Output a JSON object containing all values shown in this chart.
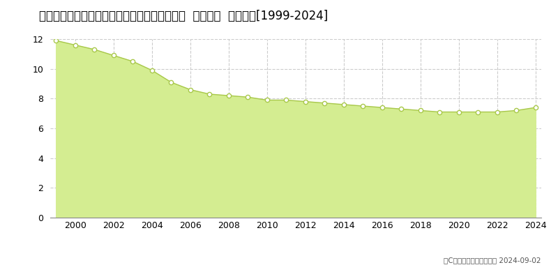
{
  "title": "三重県桑名市大字桑部字松ケ下１０４８番１外  地価公示  地価推移[1999-2024]",
  "years": [
    1999,
    2000,
    2001,
    2002,
    2003,
    2004,
    2005,
    2006,
    2007,
    2008,
    2009,
    2010,
    2011,
    2012,
    2013,
    2014,
    2015,
    2016,
    2017,
    2018,
    2019,
    2020,
    2021,
    2022,
    2023,
    2024
  ],
  "values": [
    11.9,
    11.6,
    11.3,
    10.9,
    10.5,
    9.9,
    9.1,
    8.6,
    8.3,
    8.2,
    8.1,
    7.9,
    7.9,
    7.8,
    7.7,
    7.6,
    7.5,
    7.4,
    7.3,
    7.2,
    7.1,
    7.1,
    7.1,
    7.1,
    7.2,
    7.4
  ],
  "ylim": [
    0,
    12
  ],
  "yticks": [
    0,
    2,
    4,
    6,
    8,
    10,
    12
  ],
  "xtick_years": [
    2000,
    2002,
    2004,
    2006,
    2008,
    2010,
    2012,
    2014,
    2016,
    2018,
    2020,
    2022,
    2024
  ],
  "fill_color": "#d4ed91",
  "line_color": "#a8c84a",
  "marker_face_color": "#ffffff",
  "marker_edge_color": "#a8c84a",
  "background_color": "#ffffff",
  "plot_bg_color": "#ffffff",
  "grid_color": "#cccccc",
  "title_fontsize": 12,
  "axis_fontsize": 9,
  "legend_color": "#c8e060",
  "copyright_text": "（C）土地価格ドットコム 2024-09-02"
}
